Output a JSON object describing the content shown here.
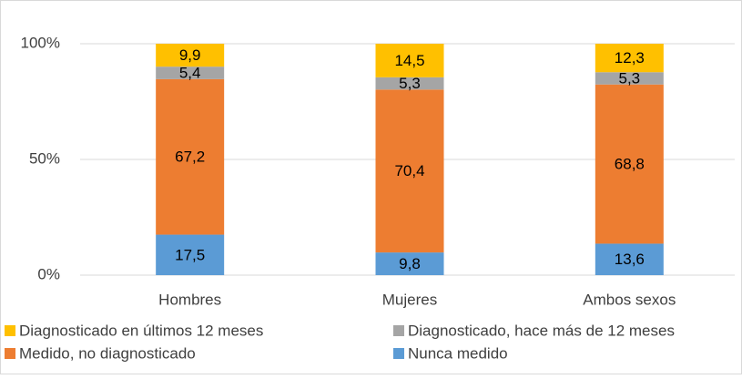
{
  "chart_data": {
    "type": "stacked_bar",
    "categories": [
      "Hombres",
      "Mujeres",
      "Ambos sexos"
    ],
    "series": [
      {
        "name": "Diagnosticado en últimos 12 meses",
        "color": "#ffc000",
        "values": [
          9.9,
          14.5,
          12.3
        ],
        "value_labels": [
          "9,9",
          "14,5",
          "12,3"
        ]
      },
      {
        "name": "Diagnosticado, hace más de 12 meses",
        "color": "#a5a5a5",
        "values": [
          5.4,
          5.3,
          5.3
        ],
        "value_labels": [
          "5,4",
          "5,3",
          "5,3"
        ]
      },
      {
        "name": "Medido, no diagnosticado",
        "color": "#ed7d31",
        "values": [
          67.2,
          70.4,
          68.8
        ],
        "value_labels": [
          "67,2",
          "70,4",
          "68,8"
        ]
      },
      {
        "name": "Nunca medido",
        "color": "#5b9bd5",
        "values": [
          17.5,
          9.8,
          13.6
        ],
        "value_labels": [
          "17,5",
          "9,8",
          "13,6"
        ]
      }
    ],
    "ylim": [
      0,
      100
    ],
    "yticks": [
      {
        "value": 0,
        "label": "0%"
      },
      {
        "value": 50,
        "label": "50%"
      },
      {
        "value": 100,
        "label": "100%"
      }
    ],
    "grid": true
  }
}
